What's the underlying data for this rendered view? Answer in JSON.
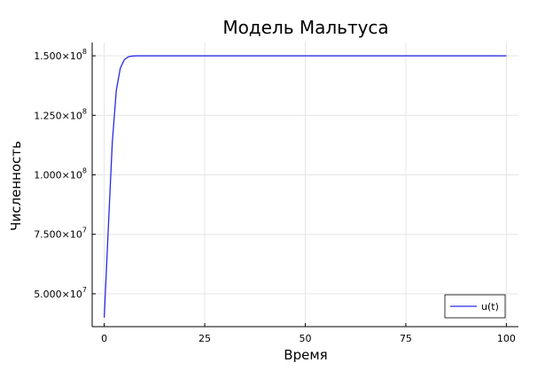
{
  "chart_data": {
    "type": "line",
    "title": "Модель Мальтуса",
    "xlabel": "Время",
    "ylabel": "Численность",
    "xlim": [
      -3,
      103
    ],
    "ylim": [
      36200000,
      155600000
    ],
    "x_ticks": [
      0,
      25,
      50,
      75,
      100
    ],
    "x_tick_labels": [
      "0",
      "25",
      "50",
      "75",
      "100"
    ],
    "y_ticks": [
      50000000,
      75000000,
      100000000,
      125000000,
      150000000
    ],
    "y_tick_labels": [
      {
        "mantissa": "5.000×10",
        "exp": "7"
      },
      {
        "mantissa": "7.500×10",
        "exp": "7"
      },
      {
        "mantissa": "1.000×10",
        "exp": "8"
      },
      {
        "mantissa": "1.250×10",
        "exp": "8"
      },
      {
        "mantissa": "1.500×10",
        "exp": "8"
      }
    ],
    "grid": true,
    "legend_position": "bottom-right",
    "series": [
      {
        "name": "u(t)",
        "color": "#2a2ae6",
        "x": [
          0,
          1,
          2,
          3,
          4,
          5,
          6,
          7,
          8,
          9,
          10,
          15,
          20,
          30,
          40,
          50,
          60,
          70,
          80,
          90,
          100
        ],
        "y": [
          40000000,
          77000000,
          113500000,
          135500000,
          144800000,
          148400000,
          149600000,
          149900000,
          150000000,
          150000000,
          150000000,
          150000000,
          150000000,
          150000000,
          150000000,
          150000000,
          150000000,
          150000000,
          150000000,
          150000000,
          150000000
        ]
      }
    ]
  }
}
